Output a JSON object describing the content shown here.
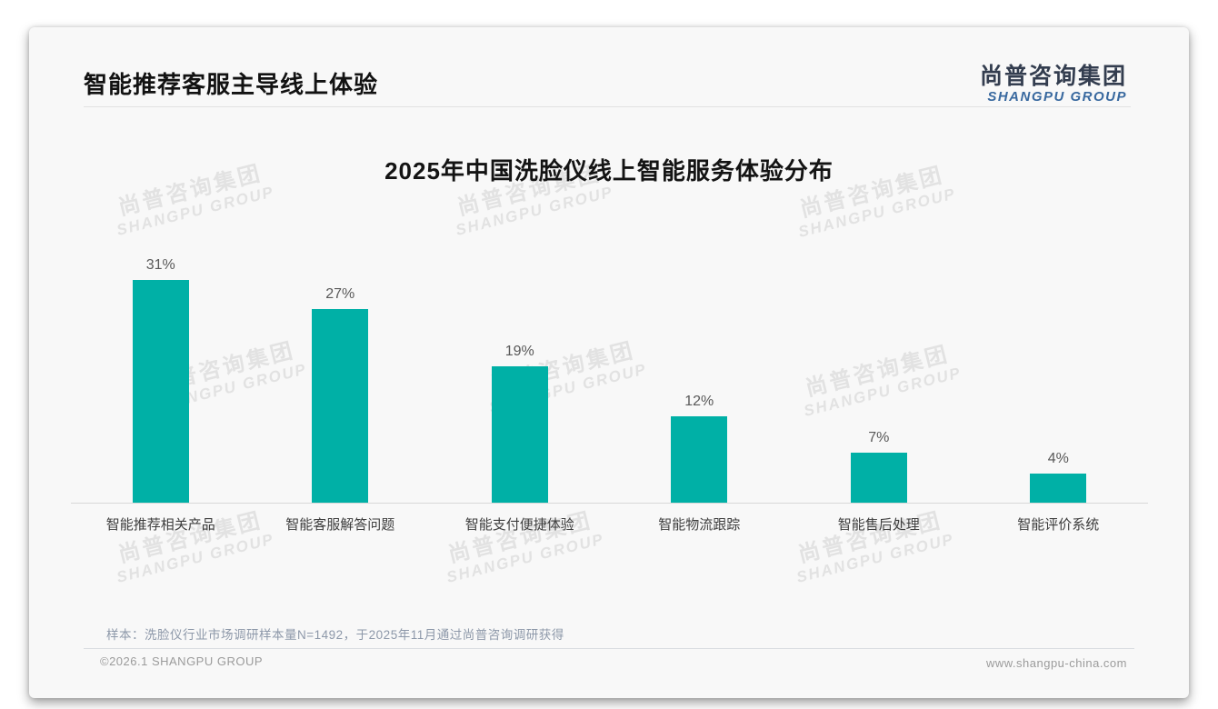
{
  "header": {
    "title": "智能推荐客服主导线上体验",
    "logo": {
      "cn": "尚普咨询集团",
      "en": "SHANGPU GROUP"
    }
  },
  "watermark": {
    "line1": "尚普咨询集团",
    "line2": "SHANGPU GROUP"
  },
  "chart_data": {
    "type": "bar",
    "title": "2025年中国洗脸仪线上智能服务体验分布",
    "categories": [
      "智能推荐相关产品",
      "智能客服解答问题",
      "智能支付便捷体验",
      "智能物流跟踪",
      "智能售后处理",
      "智能评价系统"
    ],
    "values": [
      31,
      27,
      19,
      12,
      7,
      4
    ],
    "value_labels": [
      "31%",
      "27%",
      "19%",
      "12%",
      "7%",
      "4%"
    ],
    "unit": "%",
    "bar_color": "#00b0a6",
    "ylim": [
      0,
      31
    ],
    "grid": false,
    "legend": false
  },
  "note": "样本：洗脸仪行业市场调研样本量N=1492，于2025年11月通过尚普咨询调研获得",
  "footer": {
    "copyright": "©2026.1 SHANGPU GROUP",
    "website": "www.shangpu-china.com"
  }
}
